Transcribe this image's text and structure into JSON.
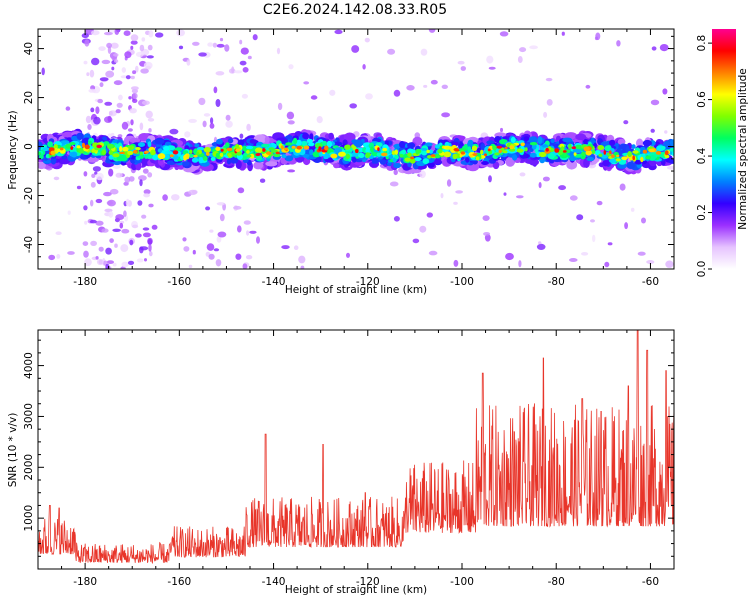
{
  "title": "C2E6.2024.142.08.33.R05",
  "chart_data": [
    {
      "type": "heatmap",
      "xlabel": "Height of straight line (km)",
      "ylabel": "Frequency (Hz)",
      "xlim": [
        -190,
        -55
      ],
      "ylim": [
        -50,
        48
      ],
      "x_ticks": [
        -180,
        -160,
        -140,
        -120,
        -100,
        -80,
        -60
      ],
      "x_tick_labels": [
        "-180",
        "-160",
        "-140",
        "-120",
        "-100",
        "-80",
        "-60"
      ],
      "y_ticks": [
        -40,
        -20,
        0,
        20,
        40
      ],
      "y_tick_labels": [
        "-40",
        "-20",
        "0",
        "20",
        "40"
      ],
      "band": {
        "center_hz": -2,
        "half_width_hz": 6
      },
      "colorbar": {
        "label": "Normalized spectral amplitude",
        "range": [
          0,
          0.85
        ],
        "ticks": [
          0.0,
          0.2,
          0.4,
          0.6,
          0.8
        ],
        "tick_labels": [
          "0.0",
          "0.2",
          "0.4",
          "0.6",
          "0.8"
        ],
        "colors": [
          "#ffffff",
          "#e6c3ff",
          "#9b30ff",
          "#3300ff",
          "#0080ff",
          "#00ffff",
          "#00ff60",
          "#80ff00",
          "#ffff00",
          "#ff8000",
          "#ff0000",
          "#ff0090"
        ]
      },
      "grid": false
    },
    {
      "type": "line",
      "xlabel": "Height of straight line (km)",
      "ylabel": "SNR (10 * v/v)",
      "xlim": [
        -190,
        -55
      ],
      "ylim": [
        0,
        4700
      ],
      "x_ticks": [
        -180,
        -160,
        -140,
        -120,
        -100,
        -80,
        -60
      ],
      "x_tick_labels": [
        "-180",
        "-160",
        "-140",
        "-120",
        "-100",
        "-80",
        "-60"
      ],
      "y_ticks": [
        1000,
        2000,
        3000,
        4000
      ],
      "y_tick_labels": [
        "1000",
        "2000",
        "3000",
        "4000"
      ],
      "series_color": "#e8352a",
      "baseline_segments": [
        {
          "x": [
            -190,
            -182
          ],
          "mean": 500,
          "spread": 350
        },
        {
          "x": [
            -182,
            -162
          ],
          "mean": 230,
          "spread": 180
        },
        {
          "x": [
            -162,
            -146
          ],
          "mean": 400,
          "spread": 280
        },
        {
          "x": [
            -146,
            -112
          ],
          "mean": 700,
          "spread": 450
        },
        {
          "x": [
            -112,
            -97
          ],
          "mean": 1100,
          "spread": 650
        },
        {
          "x": [
            -97,
            -55
          ],
          "mean": 1500,
          "spread": 1100
        }
      ],
      "peaks": [
        {
          "x": -187.5,
          "y": 1250
        },
        {
          "x": -185.5,
          "y": 1200
        },
        {
          "x": -141.7,
          "y": 2650
        },
        {
          "x": -129.5,
          "y": 2450
        },
        {
          "x": -120.5,
          "y": 1500
        },
        {
          "x": -95.6,
          "y": 3850
        },
        {
          "x": -82.7,
          "y": 4150
        },
        {
          "x": -74.5,
          "y": 3350
        },
        {
          "x": -70.5,
          "y": 3100
        },
        {
          "x": -64.7,
          "y": 3600
        },
        {
          "x": -62.7,
          "y": 4700
        },
        {
          "x": -60.7,
          "y": 4300
        },
        {
          "x": -56.7,
          "y": 3900
        }
      ],
      "grid": false
    }
  ]
}
